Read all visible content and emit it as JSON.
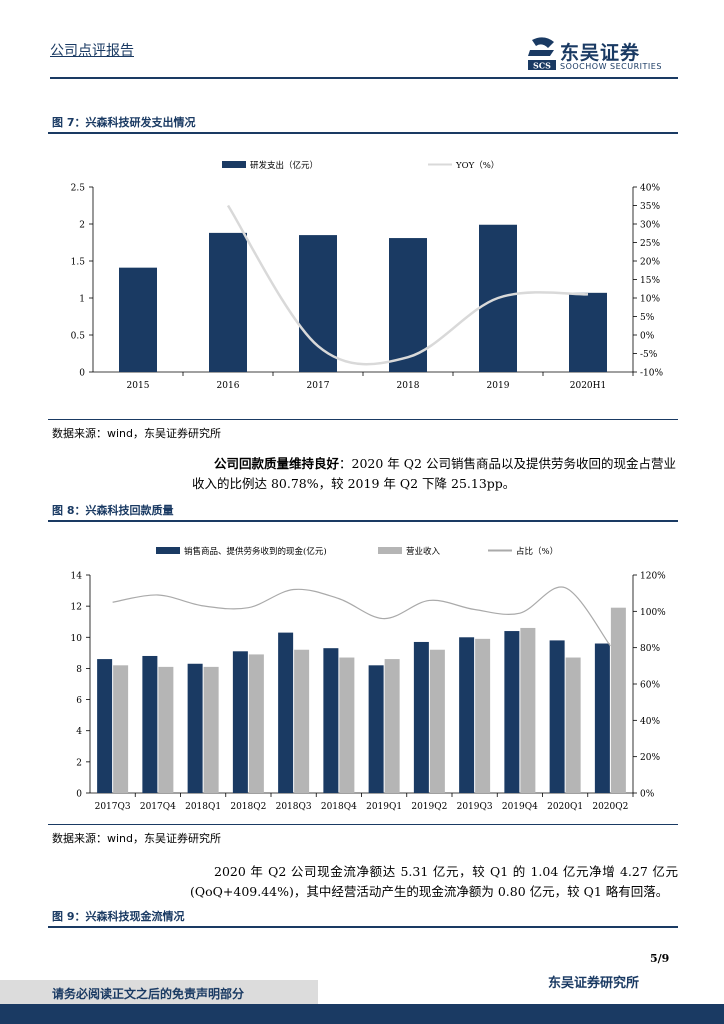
{
  "header": {
    "report_type": "公司点评报告",
    "logo_cn": "东吴证券",
    "logo_en": "SOOCHOW SECURITIES",
    "logo_mark": "SCS"
  },
  "colors": {
    "navy": "#1a3a63",
    "gray_bar": "#b5b5b5",
    "line_light": "#d9d9d9"
  },
  "figure7": {
    "title": "图 7：兴森科技研发支出情况",
    "source": "数据来源：wind，东吴证券研究所"
  },
  "para1": {
    "bold": "公司回款质量维持良好",
    "text": "：2020 年 Q2 公司销售商品以及提供劳务收回的现金占营业收入的比例达 80.78%，较 2019 年 Q2 下降 25.13pp。"
  },
  "figure8": {
    "title": "图 8：兴森科技回款质量",
    "source": "数据来源：wind，东吴证券研究所"
  },
  "para2": {
    "text": "2020 年 Q2 公司现金流净额达 5.31 亿元，较 Q1 的 1.04 亿元净增 4.27 亿元(QoQ+409.44%)，其中经营活动产生的现金流净额为 0.80 亿元，较 Q1 略有回落。"
  },
  "figure9": {
    "title": "图 9：兴森科技现金流情况"
  },
  "page_number": "5/9",
  "footer": {
    "disclaimer": "请务必阅读正文之后的免责声明部分",
    "firm": "东吴证券研究所"
  },
  "chart_data": [
    {
      "type": "bar",
      "title": "兴森科技研发支出情况",
      "categories": [
        "2015",
        "2016",
        "2017",
        "2018",
        "2019",
        "2020H1"
      ],
      "series": [
        {
          "name": "研发支出（亿元）",
          "axis": "left",
          "kind": "bar",
          "values": [
            1.41,
            1.88,
            1.85,
            1.81,
            1.99,
            1.07
          ]
        },
        {
          "name": "YOY（%）",
          "axis": "right",
          "kind": "line",
          "values": [
            null,
            35,
            -3,
            -6,
            10,
            11
          ]
        }
      ],
      "y_left": {
        "min": 0,
        "max": 2.5,
        "ticks": [
          "0",
          "0.5",
          "1",
          "1.5",
          "2",
          "2.5"
        ]
      },
      "y_right": {
        "min": -10,
        "max": 40,
        "ticks": [
          "-10%",
          "-5%",
          "0%",
          "5%",
          "10%",
          "15%",
          "20%",
          "25%",
          "30%",
          "35%",
          "40%"
        ]
      }
    },
    {
      "type": "bar",
      "title": "兴森科技回款质量",
      "categories": [
        "2017Q3",
        "2017Q4",
        "2018Q1",
        "2018Q2",
        "2018Q3",
        "2018Q4",
        "2019Q1",
        "2019Q2",
        "2019Q3",
        "2019Q4",
        "2020Q1",
        "2020Q2"
      ],
      "series": [
        {
          "name": "销售商品、提供劳务收到的现金(亿元)",
          "axis": "left",
          "kind": "bar",
          "values": [
            8.6,
            8.8,
            8.3,
            9.1,
            10.3,
            9.3,
            8.2,
            9.7,
            10.0,
            10.4,
            9.8,
            9.6
          ]
        },
        {
          "name": "营业收入",
          "axis": "left",
          "kind": "bar",
          "values": [
            8.2,
            8.1,
            8.1,
            8.9,
            9.2,
            8.7,
            8.6,
            9.2,
            9.9,
            10.6,
            8.7,
            11.9
          ]
        },
        {
          "name": "占比（%）",
          "axis": "right",
          "kind": "line",
          "values": [
            105,
            109,
            103,
            102,
            112,
            107,
            96,
            106,
            101,
            99,
            113,
            81
          ]
        }
      ],
      "y_left": {
        "min": 0,
        "max": 14,
        "ticks": [
          "0",
          "2",
          "4",
          "6",
          "8",
          "10",
          "12",
          "14"
        ]
      },
      "y_right": {
        "min": 0,
        "max": 120,
        "ticks": [
          "0%",
          "20%",
          "40%",
          "60%",
          "80%",
          "100%",
          "120%"
        ]
      }
    }
  ]
}
